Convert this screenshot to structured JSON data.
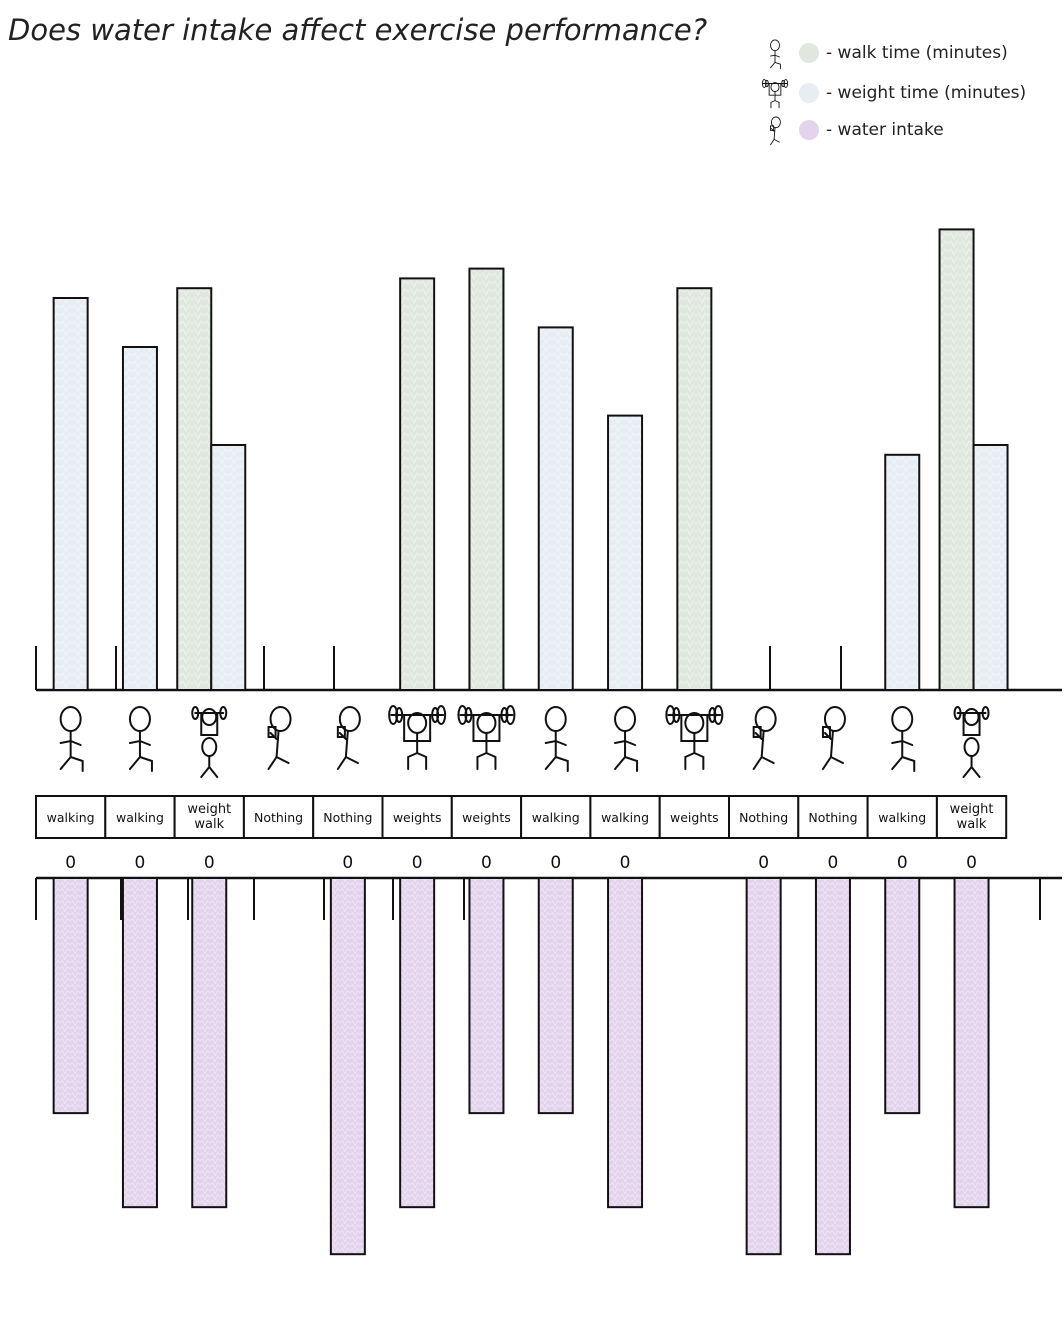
{
  "title": "Does water intake affect exercise performance?",
  "legend": {
    "position": "top-right",
    "items": [
      {
        "label": "- walk time (minutes)",
        "color": "#dfe8de",
        "icon": "walker-icon"
      },
      {
        "label": "- weight time (minutes)",
        "color": "#e6eef4",
        "icon": "weightlifter-icon"
      },
      {
        "label": "- water intake",
        "color": "#e3d3ec",
        "icon": "water-drinker-icon"
      }
    ]
  },
  "colors": {
    "walk": "#dfe8de",
    "weight": "#e6eef4",
    "water": "#e3d3ec",
    "ink": "#111111"
  },
  "chart_data": {
    "type": "bar",
    "title": "Does water intake affect exercise performance?",
    "categories": [
      "walking",
      "walking",
      "weight walk",
      "Nothing",
      "Nothing",
      "weights",
      "weights",
      "walking",
      "walking",
      "weights",
      "Nothing",
      "Nothing",
      "walking",
      "weight walk"
    ],
    "category_icons": [
      "walker-icon",
      "walker-icon",
      "weight-walker-icon",
      "water-drinker-icon",
      "water-drinker-icon",
      "weightlifter-icon",
      "weightlifter-icon",
      "walker-icon",
      "walker-icon",
      "weightlifter-icon",
      "water-drinker-icon",
      "water-drinker-icon",
      "walker-icon",
      "weight-walker-icon"
    ],
    "value_labels": [
      "0",
      "0",
      "0",
      "",
      "0",
      "0",
      "0",
      "0",
      "0",
      "",
      "0",
      "0",
      "0",
      "0"
    ],
    "series": [
      {
        "name": "walk time (minutes)",
        "values": [
          0,
          0,
          41,
          0,
          0,
          42,
          43,
          0,
          0,
          41,
          0,
          0,
          0,
          47
        ]
      },
      {
        "name": "weight time (minutes)",
        "values": [
          40,
          35,
          25,
          0,
          0,
          0,
          0,
          37,
          28,
          0,
          0,
          0,
          24,
          25
        ]
      },
      {
        "name": "water intake",
        "values": [
          2.5,
          3.5,
          3.5,
          0,
          4,
          3.5,
          2.5,
          2.5,
          3.5,
          0,
          4,
          4,
          2.5,
          3.5
        ]
      }
    ],
    "ylim_top": [
      0,
      50
    ],
    "ylim_bottom": [
      0,
      4.2
    ],
    "grid": false,
    "xlabel": "",
    "ylabel": ""
  }
}
